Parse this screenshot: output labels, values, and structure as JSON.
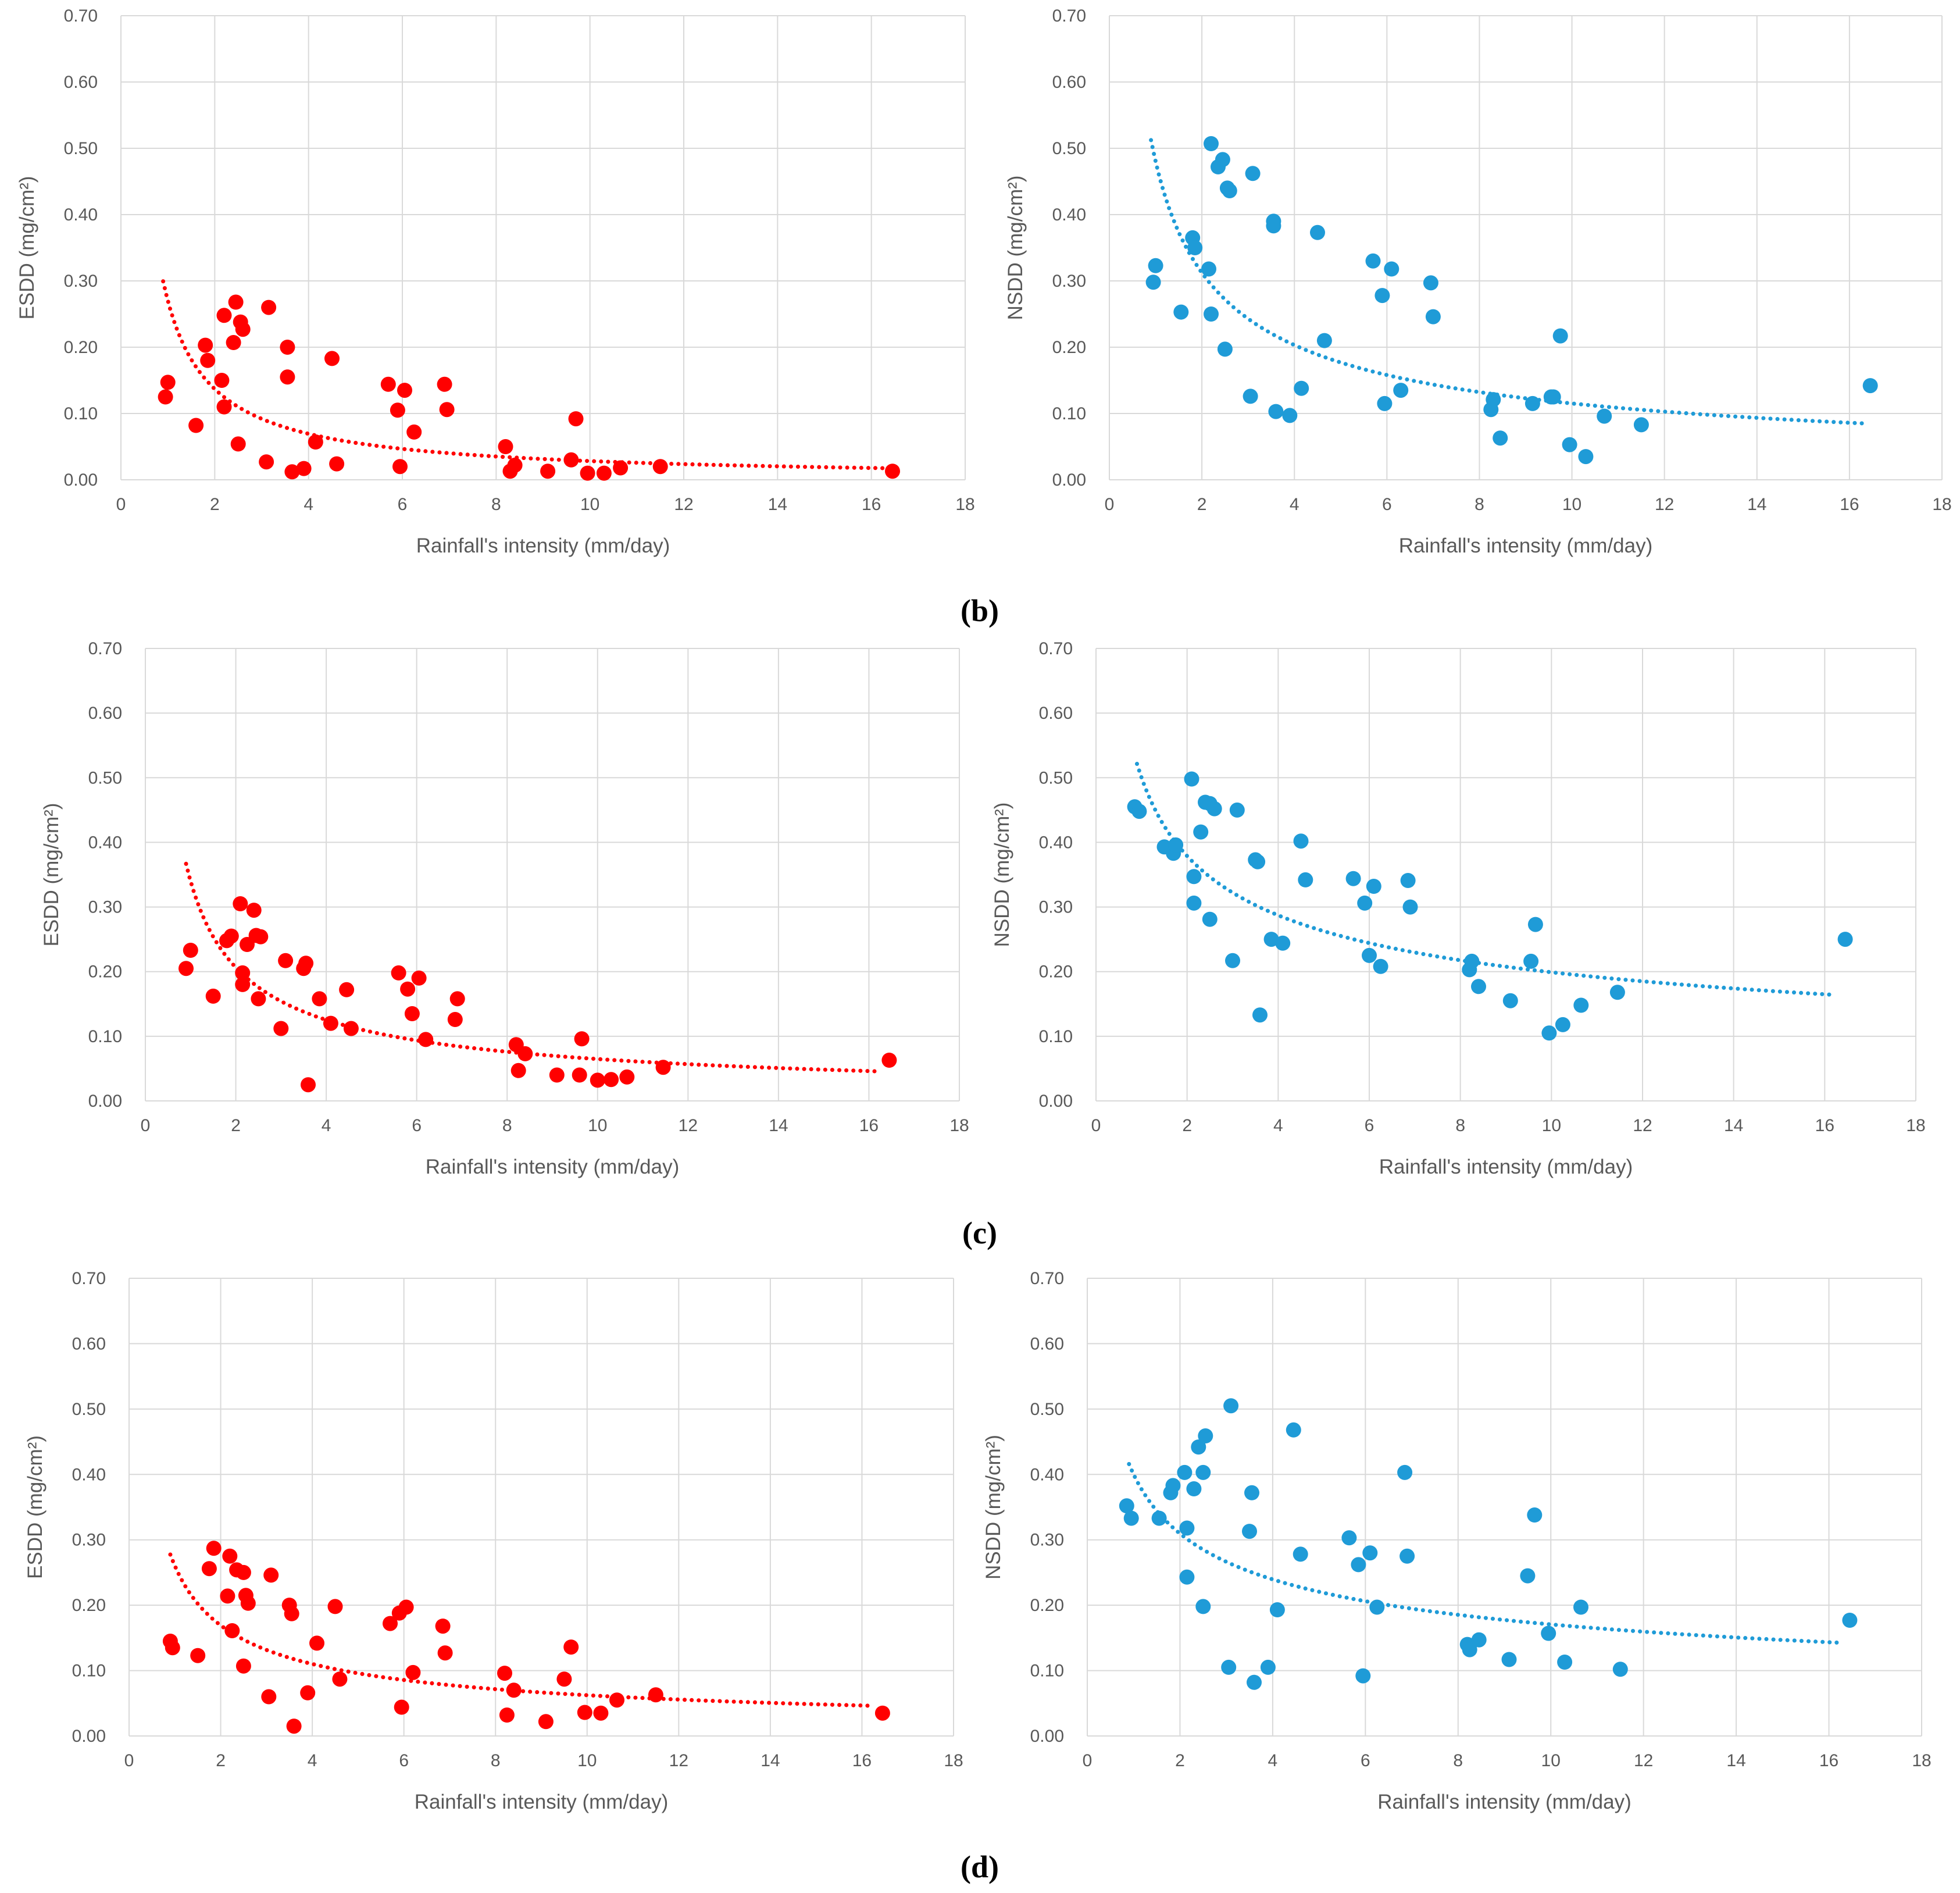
{
  "panel_labels": [
    "(b)",
    "(c)",
    "(d)"
  ],
  "chart_data": [
    {
      "type": "scatter",
      "panel": "(b)",
      "title": "",
      "xlabel": "Rainfall's intensity (mm/day)",
      "ylabel": "ESDD (mg/cm²)",
      "xlim": [
        0,
        18
      ],
      "ylim": [
        0,
        0.7
      ],
      "xticks": [
        "0",
        "2",
        "4",
        "6",
        "8",
        "10",
        "12",
        "14",
        "16",
        "18"
      ],
      "yticks": [
        "0.00",
        "0.10",
        "0.20",
        "0.30",
        "0.40",
        "0.50",
        "0.60",
        "0.70"
      ],
      "grid": true,
      "color": "#ff0000",
      "points": [
        [
          0.95,
          0.125
        ],
        [
          1.0,
          0.147
        ],
        [
          1.6,
          0.082
        ],
        [
          1.8,
          0.203
        ],
        [
          1.85,
          0.18
        ],
        [
          2.15,
          0.15
        ],
        [
          2.2,
          0.248
        ],
        [
          2.2,
          0.11
        ],
        [
          2.4,
          0.207
        ],
        [
          2.45,
          0.268
        ],
        [
          2.5,
          0.054
        ],
        [
          2.55,
          0.238
        ],
        [
          2.6,
          0.227
        ],
        [
          3.1,
          0.027
        ],
        [
          3.15,
          0.26
        ],
        [
          3.55,
          0.2
        ],
        [
          3.55,
          0.155
        ],
        [
          3.65,
          0.012
        ],
        [
          3.9,
          0.017
        ],
        [
          4.15,
          0.057
        ],
        [
          4.5,
          0.183
        ],
        [
          4.6,
          0.024
        ],
        [
          5.7,
          0.144
        ],
        [
          5.9,
          0.105
        ],
        [
          5.95,
          0.02
        ],
        [
          6.05,
          0.135
        ],
        [
          6.25,
          0.072
        ],
        [
          6.9,
          0.144
        ],
        [
          6.95,
          0.106
        ],
        [
          8.2,
          0.05
        ],
        [
          8.3,
          0.013
        ],
        [
          8.4,
          0.022
        ],
        [
          9.1,
          0.013
        ],
        [
          9.6,
          0.03
        ],
        [
          9.7,
          0.092
        ],
        [
          9.95,
          0.01
        ],
        [
          10.3,
          0.01
        ],
        [
          10.65,
          0.018
        ],
        [
          11.5,
          0.02
        ],
        [
          16.45,
          0.013
        ]
      ],
      "trendline": {
        "model": "power",
        "a": 0.27,
        "b": -0.98,
        "x_range": [
          0.9,
          16.4
        ],
        "style": "dotted"
      }
    },
    {
      "type": "scatter",
      "panel": "(b)",
      "title": "",
      "xlabel": "Rainfall's intensity (mm/day)",
      "ylabel": "NSDD (mg/cm²)",
      "xlim": [
        0,
        18
      ],
      "ylim": [
        0,
        0.7
      ],
      "xticks": [
        "0",
        "2",
        "4",
        "6",
        "8",
        "10",
        "12",
        "14",
        "16",
        "18"
      ],
      "yticks": [
        "0.00",
        "0.10",
        "0.20",
        "0.30",
        "0.40",
        "0.50",
        "0.60",
        "0.70"
      ],
      "grid": true,
      "color": "#1f9bd7",
      "points": [
        [
          0.95,
          0.298
        ],
        [
          1.0,
          0.323
        ],
        [
          1.55,
          0.253
        ],
        [
          1.8,
          0.365
        ],
        [
          1.85,
          0.35
        ],
        [
          2.15,
          0.318
        ],
        [
          2.2,
          0.507
        ],
        [
          2.2,
          0.25
        ],
        [
          2.35,
          0.472
        ],
        [
          2.45,
          0.483
        ],
        [
          2.5,
          0.197
        ],
        [
          2.55,
          0.44
        ],
        [
          2.6,
          0.436
        ],
        [
          3.05,
          0.126
        ],
        [
          3.1,
          0.462
        ],
        [
          3.55,
          0.39
        ],
        [
          3.55,
          0.383
        ],
        [
          3.6,
          0.103
        ],
        [
          3.9,
          0.097
        ],
        [
          4.15,
          0.138
        ],
        [
          4.5,
          0.373
        ],
        [
          4.65,
          0.21
        ],
        [
          5.7,
          0.33
        ],
        [
          5.9,
          0.278
        ],
        [
          5.95,
          0.115
        ],
        [
          6.1,
          0.318
        ],
        [
          6.3,
          0.135
        ],
        [
          6.95,
          0.297
        ],
        [
          7.0,
          0.246
        ],
        [
          8.25,
          0.106
        ],
        [
          8.3,
          0.121
        ],
        [
          8.45,
          0.063
        ],
        [
          9.15,
          0.115
        ],
        [
          9.55,
          0.125
        ],
        [
          9.6,
          0.125
        ],
        [
          9.75,
          0.217
        ],
        [
          9.95,
          0.053
        ],
        [
          10.3,
          0.035
        ],
        [
          10.7,
          0.096
        ],
        [
          11.5,
          0.083
        ],
        [
          16.45,
          0.142
        ]
      ],
      "trendline": {
        "model": "power",
        "a": 0.48,
        "b": -0.62,
        "x_range": [
          0.9,
          16.4
        ],
        "style": "dotted"
      }
    },
    {
      "type": "scatter",
      "panel": "(c)",
      "title": "",
      "xlabel": "Rainfall's intensity (mm/day)",
      "ylabel": "ESDD (mg/cm²)",
      "xlim": [
        0,
        18
      ],
      "ylim": [
        0,
        0.7
      ],
      "xticks": [
        "0",
        "2",
        "4",
        "6",
        "8",
        "10",
        "12",
        "14",
        "16",
        "18"
      ],
      "yticks": [
        "0.00",
        "0.10",
        "0.20",
        "0.30",
        "0.40",
        "0.50",
        "0.60",
        "0.70"
      ],
      "grid": true,
      "color": "#ff0000",
      "points": [
        [
          0.9,
          0.205
        ],
        [
          1.0,
          0.233
        ],
        [
          1.5,
          0.162
        ],
        [
          1.8,
          0.248
        ],
        [
          1.9,
          0.255
        ],
        [
          2.1,
          0.305
        ],
        [
          2.15,
          0.198
        ],
        [
          2.15,
          0.18
        ],
        [
          2.25,
          0.242
        ],
        [
          2.4,
          0.295
        ],
        [
          2.45,
          0.256
        ],
        [
          2.5,
          0.158
        ],
        [
          2.55,
          0.254
        ],
        [
          3.0,
          0.112
        ],
        [
          3.1,
          0.217
        ],
        [
          3.5,
          0.205
        ],
        [
          3.55,
          0.213
        ],
        [
          3.6,
          0.025
        ],
        [
          3.85,
          0.158
        ],
        [
          4.1,
          0.12
        ],
        [
          4.45,
          0.172
        ],
        [
          4.55,
          0.112
        ],
        [
          5.6,
          0.198
        ],
        [
          5.8,
          0.173
        ],
        [
          5.9,
          0.135
        ],
        [
          6.05,
          0.19
        ],
        [
          6.2,
          0.095
        ],
        [
          6.85,
          0.126
        ],
        [
          6.9,
          0.158
        ],
        [
          8.2,
          0.087
        ],
        [
          8.25,
          0.047
        ],
        [
          8.4,
          0.073
        ],
        [
          9.1,
          0.04
        ],
        [
          9.6,
          0.04
        ],
        [
          9.65,
          0.096
        ],
        [
          10.0,
          0.032
        ],
        [
          10.3,
          0.033
        ],
        [
          10.65,
          0.037
        ],
        [
          11.45,
          0.052
        ],
        [
          16.45,
          0.063
        ]
      ],
      "trendline": {
        "model": "power",
        "a": 0.34,
        "b": -0.72,
        "x_range": [
          0.9,
          16.2
        ],
        "style": "dotted"
      }
    },
    {
      "type": "scatter",
      "panel": "(c)",
      "title": "",
      "xlabel": "Rainfall's intensity (mm/day)",
      "ylabel": "NSDD (mg/cm²)",
      "xlim": [
        0,
        18
      ],
      "ylim": [
        0,
        0.7
      ],
      "xticks": [
        "0",
        "2",
        "4",
        "6",
        "8",
        "10",
        "12",
        "14",
        "16",
        "18"
      ],
      "yticks": [
        "0.00",
        "0.10",
        "0.20",
        "0.30",
        "0.40",
        "0.50",
        "0.60",
        "0.70"
      ],
      "grid": true,
      "color": "#1f9bd7",
      "points": [
        [
          0.85,
          0.455
        ],
        [
          0.95,
          0.448
        ],
        [
          1.5,
          0.393
        ],
        [
          1.7,
          0.383
        ],
        [
          1.75,
          0.396
        ],
        [
          2.1,
          0.498
        ],
        [
          2.15,
          0.347
        ],
        [
          2.15,
          0.306
        ],
        [
          2.3,
          0.416
        ],
        [
          2.4,
          0.462
        ],
        [
          2.5,
          0.46
        ],
        [
          2.5,
          0.281
        ],
        [
          2.6,
          0.452
        ],
        [
          3.0,
          0.217
        ],
        [
          3.1,
          0.45
        ],
        [
          3.5,
          0.373
        ],
        [
          3.55,
          0.37
        ],
        [
          3.6,
          0.133
        ],
        [
          3.85,
          0.25
        ],
        [
          4.1,
          0.244
        ],
        [
          4.5,
          0.402
        ],
        [
          4.6,
          0.342
        ],
        [
          5.65,
          0.344
        ],
        [
          5.9,
          0.306
        ],
        [
          6.0,
          0.225
        ],
        [
          6.1,
          0.332
        ],
        [
          6.25,
          0.208
        ],
        [
          6.85,
          0.341
        ],
        [
          6.9,
          0.3
        ],
        [
          8.2,
          0.203
        ],
        [
          8.25,
          0.216
        ],
        [
          8.4,
          0.177
        ],
        [
          9.1,
          0.155
        ],
        [
          9.55,
          0.216
        ],
        [
          9.65,
          0.273
        ],
        [
          9.95,
          0.105
        ],
        [
          10.25,
          0.118
        ],
        [
          10.65,
          0.148
        ],
        [
          11.45,
          0.168
        ],
        [
          16.45,
          0.25
        ]
      ],
      "trendline": {
        "model": "power",
        "a": 0.5,
        "b": -0.4,
        "x_range": [
          0.9,
          16.2
        ],
        "style": "dotted"
      }
    },
    {
      "type": "scatter",
      "panel": "(d)",
      "title": "",
      "xlabel": "Rainfall's intensity (mm/day)",
      "ylabel": "ESDD (mg/cm²)",
      "xlim": [
        0,
        18
      ],
      "ylim": [
        0,
        0.7
      ],
      "xticks": [
        "0",
        "2",
        "4",
        "6",
        "8",
        "10",
        "12",
        "14",
        "16",
        "18"
      ],
      "yticks": [
        "0.00",
        "0.10",
        "0.20",
        "0.30",
        "0.40",
        "0.50",
        "0.60",
        "0.70"
      ],
      "grid": true,
      "color": "#ff0000",
      "points": [
        [
          0.9,
          0.145
        ],
        [
          0.95,
          0.135
        ],
        [
          1.5,
          0.123
        ],
        [
          1.75,
          0.256
        ],
        [
          1.85,
          0.287
        ],
        [
          2.15,
          0.214
        ],
        [
          2.2,
          0.275
        ],
        [
          2.25,
          0.161
        ],
        [
          2.35,
          0.254
        ],
        [
          2.5,
          0.25
        ],
        [
          2.5,
          0.107
        ],
        [
          2.55,
          0.215
        ],
        [
          2.6,
          0.203
        ],
        [
          3.05,
          0.06
        ],
        [
          3.1,
          0.246
        ],
        [
          3.5,
          0.2
        ],
        [
          3.55,
          0.187
        ],
        [
          3.6,
          0.015
        ],
        [
          3.9,
          0.066
        ],
        [
          4.1,
          0.142
        ],
        [
          4.5,
          0.198
        ],
        [
          4.6,
          0.087
        ],
        [
          5.7,
          0.172
        ],
        [
          5.9,
          0.188
        ],
        [
          5.95,
          0.044
        ],
        [
          6.05,
          0.197
        ],
        [
          6.2,
          0.097
        ],
        [
          6.85,
          0.168
        ],
        [
          6.9,
          0.127
        ],
        [
          8.2,
          0.096
        ],
        [
          8.25,
          0.032
        ],
        [
          8.4,
          0.07
        ],
        [
          9.1,
          0.022
        ],
        [
          9.5,
          0.087
        ],
        [
          9.65,
          0.136
        ],
        [
          9.95,
          0.036
        ],
        [
          10.3,
          0.035
        ],
        [
          10.65,
          0.055
        ],
        [
          11.5,
          0.063
        ],
        [
          16.45,
          0.035
        ]
      ],
      "trendline": {
        "model": "power",
        "a": 0.26,
        "b": -0.62,
        "x_range": [
          0.9,
          16.2
        ],
        "style": "dotted"
      }
    },
    {
      "type": "scatter",
      "panel": "(d)",
      "title": "",
      "xlabel": "Rainfall's intensity (mm/day)",
      "ylabel": "NSDD (mg/cm²)",
      "xlim": [
        0,
        18
      ],
      "ylim": [
        0,
        0.7
      ],
      "xticks": [
        "0",
        "2",
        "4",
        "6",
        "8",
        "10",
        "12",
        "14",
        "16",
        "18"
      ],
      "yticks": [
        "0.00",
        "0.10",
        "0.20",
        "0.30",
        "0.40",
        "0.50",
        "0.60",
        "0.70"
      ],
      "grid": true,
      "color": "#1f9bd7",
      "points": [
        [
          0.85,
          0.352
        ],
        [
          0.95,
          0.333
        ],
        [
          1.55,
          0.333
        ],
        [
          1.8,
          0.372
        ],
        [
          1.85,
          0.383
        ],
        [
          2.1,
          0.403
        ],
        [
          2.15,
          0.318
        ],
        [
          2.15,
          0.243
        ],
        [
          2.3,
          0.378
        ],
        [
          2.4,
          0.442
        ],
        [
          2.5,
          0.403
        ],
        [
          2.5,
          0.198
        ],
        [
          2.55,
          0.459
        ],
        [
          3.05,
          0.105
        ],
        [
          3.1,
          0.505
        ],
        [
          3.55,
          0.372
        ],
        [
          3.5,
          0.313
        ],
        [
          3.6,
          0.082
        ],
        [
          3.9,
          0.105
        ],
        [
          4.1,
          0.193
        ],
        [
          4.45,
          0.468
        ],
        [
          4.6,
          0.278
        ],
        [
          5.65,
          0.303
        ],
        [
          5.85,
          0.262
        ],
        [
          5.95,
          0.092
        ],
        [
          6.1,
          0.28
        ],
        [
          6.25,
          0.197
        ],
        [
          6.85,
          0.403
        ],
        [
          6.9,
          0.275
        ],
        [
          8.2,
          0.14
        ],
        [
          8.25,
          0.132
        ],
        [
          8.45,
          0.147
        ],
        [
          9.1,
          0.117
        ],
        [
          9.5,
          0.245
        ],
        [
          9.65,
          0.338
        ],
        [
          9.95,
          0.157
        ],
        [
          10.3,
          0.113
        ],
        [
          10.65,
          0.197
        ],
        [
          11.5,
          0.102
        ],
        [
          16.45,
          0.177
        ]
      ],
      "trendline": {
        "model": "power",
        "a": 0.4,
        "b": -0.37,
        "x_range": [
          0.9,
          16.2
        ],
        "style": "dotted"
      }
    }
  ]
}
